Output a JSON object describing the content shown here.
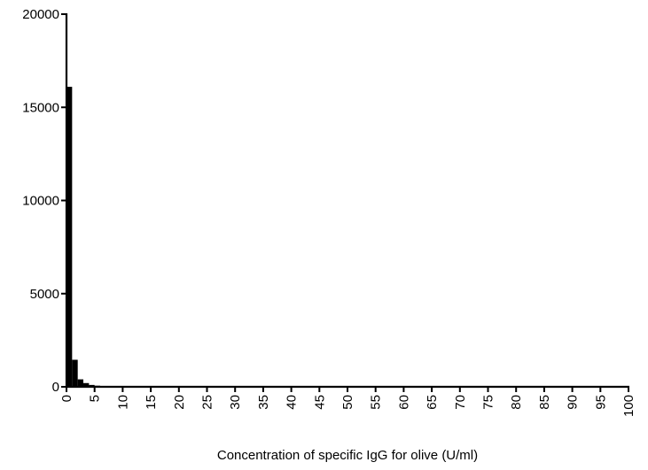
{
  "chart_data": {
    "type": "bar",
    "title": "",
    "xlabel": "Concentration of specific IgG for olive (U/ml)",
    "ylabel": "",
    "xlim": [
      0,
      100
    ],
    "ylim": [
      0,
      20000
    ],
    "grid": false,
    "bar_color": "#000000",
    "bin_width": 1,
    "x_ticks": [
      0,
      5,
      10,
      15,
      20,
      25,
      30,
      35,
      40,
      45,
      50,
      55,
      60,
      65,
      70,
      75,
      80,
      85,
      90,
      95,
      100
    ],
    "x_tick_labels": [
      "0",
      "5",
      "10",
      "15",
      "20",
      "25",
      "30",
      "35",
      "40",
      "45",
      "50",
      "55",
      "60",
      "65",
      "70",
      "75",
      "80",
      "85",
      "90",
      "95",
      "100"
    ],
    "y_ticks": [
      0,
      5000,
      10000,
      15000,
      20000
    ],
    "y_tick_labels": [
      "0",
      "5000",
      "10000",
      "15000",
      "20000"
    ],
    "bins": [
      0,
      1,
      2,
      3,
      4,
      5,
      6,
      7,
      8,
      9
    ],
    "values": [
      16100,
      1450,
      400,
      200,
      100,
      60,
      40,
      30,
      20,
      15
    ]
  }
}
